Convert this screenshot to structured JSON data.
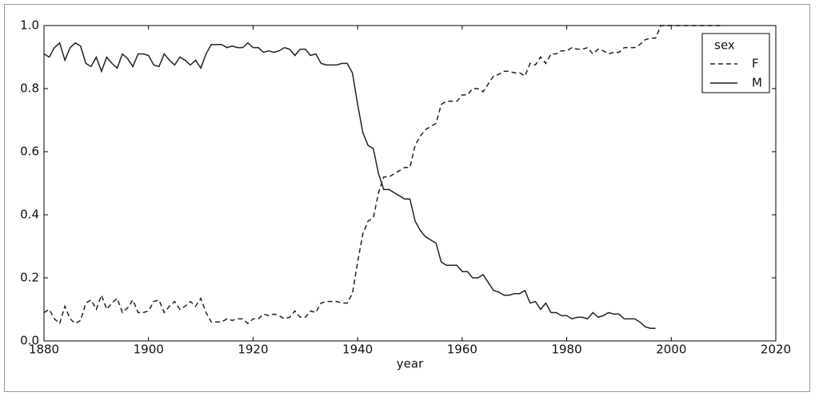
{
  "chart_data": {
    "type": "line",
    "xlabel": "year",
    "x": [
      1880,
      1881,
      1882,
      1883,
      1884,
      1885,
      1886,
      1887,
      1888,
      1889,
      1890,
      1891,
      1892,
      1893,
      1894,
      1895,
      1896,
      1897,
      1898,
      1899,
      1900,
      1901,
      1902,
      1903,
      1904,
      1905,
      1906,
      1907,
      1908,
      1909,
      1910,
      1911,
      1912,
      1913,
      1914,
      1915,
      1916,
      1917,
      1918,
      1919,
      1920,
      1921,
      1922,
      1923,
      1924,
      1925,
      1926,
      1927,
      1928,
      1929,
      1930,
      1931,
      1932,
      1933,
      1934,
      1935,
      1936,
      1937,
      1938,
      1939,
      1940,
      1941,
      1942,
      1943,
      1944,
      1945,
      1946,
      1947,
      1948,
      1949,
      1950,
      1951,
      1952,
      1953,
      1954,
      1955,
      1956,
      1957,
      1958,
      1959,
      1960,
      1961,
      1962,
      1963,
      1964,
      1965,
      1966,
      1967,
      1968,
      1969,
      1970,
      1971,
      1972,
      1973,
      1974,
      1975,
      1976,
      1977,
      1978,
      1979,
      1980,
      1981,
      1982,
      1983,
      1984,
      1985,
      1986,
      1987,
      1988,
      1989,
      1990,
      1991,
      1992,
      1993,
      1994,
      1995,
      1996,
      1997,
      1998,
      1999,
      2000,
      2001,
      2002,
      2003,
      2004,
      2005,
      2006,
      2007,
      2008,
      2009,
      2010
    ],
    "series": [
      {
        "name": "F",
        "color": "#222222",
        "dash": true,
        "values": [
          0.09,
          0.1,
          0.07,
          0.055,
          0.11,
          0.07,
          0.055,
          0.065,
          0.12,
          0.13,
          0.1,
          0.145,
          0.1,
          0.12,
          0.135,
          0.09,
          0.105,
          0.13,
          0.09,
          0.09,
          0.095,
          0.125,
          0.13,
          0.09,
          0.11,
          0.125,
          0.1,
          0.11,
          0.125,
          0.11,
          0.135,
          0.09,
          0.06,
          0.06,
          0.06,
          0.07,
          0.065,
          0.07,
          0.07,
          0.055,
          0.07,
          0.07,
          0.085,
          0.08,
          0.085,
          0.08,
          0.07,
          0.075,
          0.095,
          0.075,
          0.075,
          0.095,
          0.09,
          0.12,
          0.125,
          0.125,
          0.125,
          0.12,
          0.12,
          0.15,
          0.25,
          0.34,
          0.38,
          0.39,
          0.47,
          0.52,
          0.52,
          0.53,
          0.54,
          0.55,
          0.55,
          0.62,
          0.65,
          0.67,
          0.68,
          0.69,
          0.75,
          0.76,
          0.76,
          0.76,
          0.78,
          0.78,
          0.8,
          0.8,
          0.79,
          0.815,
          0.84,
          0.845,
          0.855,
          0.855,
          0.85,
          0.85,
          0.84,
          0.88,
          0.875,
          0.9,
          0.88,
          0.91,
          0.91,
          0.92,
          0.92,
          0.93,
          0.925,
          0.925,
          0.93,
          0.91,
          0.925,
          0.92,
          0.91,
          0.915,
          0.915,
          0.93,
          0.93,
          0.93,
          0.94,
          0.955,
          0.96,
          0.96,
          1.0,
          1.0,
          1.0,
          1.0,
          1.0,
          1.0,
          1.0,
          1.0,
          1.0,
          1.0,
          1.0,
          1.0,
          1.0
        ]
      },
      {
        "name": "M",
        "color": "#222222",
        "dash": false,
        "values": [
          0.91,
          0.9,
          0.93,
          0.945,
          0.89,
          0.93,
          0.945,
          0.935,
          0.88,
          0.87,
          0.9,
          0.855,
          0.9,
          0.88,
          0.865,
          0.91,
          0.895,
          0.87,
          0.91,
          0.91,
          0.905,
          0.875,
          0.87,
          0.91,
          0.89,
          0.875,
          0.9,
          0.89,
          0.875,
          0.89,
          0.865,
          0.91,
          0.94,
          0.94,
          0.94,
          0.93,
          0.935,
          0.93,
          0.93,
          0.945,
          0.93,
          0.93,
          0.915,
          0.92,
          0.915,
          0.92,
          0.93,
          0.925,
          0.905,
          0.925,
          0.925,
          0.905,
          0.91,
          0.88,
          0.875,
          0.875,
          0.875,
          0.88,
          0.88,
          0.85,
          0.75,
          0.66,
          0.62,
          0.61,
          0.53,
          0.48,
          0.48,
          0.47,
          0.46,
          0.45,
          0.45,
          0.38,
          0.35,
          0.33,
          0.32,
          0.31,
          0.25,
          0.24,
          0.24,
          0.24,
          0.22,
          0.22,
          0.2,
          0.2,
          0.21,
          0.185,
          0.16,
          0.155,
          0.145,
          0.145,
          0.15,
          0.15,
          0.16,
          0.12,
          0.125,
          0.1,
          0.12,
          0.09,
          0.09,
          0.08,
          0.08,
          0.07,
          0.075,
          0.075,
          0.07,
          0.09,
          0.075,
          0.08,
          0.09,
          0.085,
          0.085,
          0.07,
          0.07,
          0.07,
          0.06,
          0.045,
          0.04,
          0.04,
          null,
          null,
          null,
          null,
          null,
          null,
          null,
          null,
          null,
          null,
          null,
          null,
          null
        ]
      }
    ],
    "legend_title": "sex",
    "legend": "upper right",
    "xlim": [
      1880,
      2020
    ],
    "xticks": [
      1880,
      1900,
      1920,
      1940,
      1960,
      1980,
      2000,
      2020
    ],
    "ylim": [
      0,
      1
    ],
    "yticks": [
      {
        "value": 0,
        "label": "0.0"
      },
      0.2,
      0.4,
      0.6,
      0.8,
      {
        "value": 1,
        "label": "1.0"
      }
    ],
    "grid": false
  }
}
